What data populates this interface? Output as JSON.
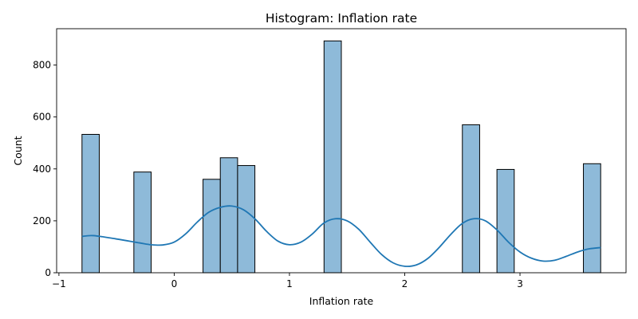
{
  "chart_data": {
    "type": "bar",
    "title": "Histogram: Inflation rate",
    "xlabel": "Inflation rate",
    "ylabel": "Count",
    "xlim": [
      -1.02,
      3.92
    ],
    "ylim": [
      0,
      940
    ],
    "xticks": [
      -1,
      0,
      1,
      2,
      3
    ],
    "yticks": [
      0,
      200,
      400,
      600,
      800
    ],
    "bin_width": 0.15,
    "bins": [
      {
        "x0": -0.8,
        "x1": -0.65,
        "count": 533
      },
      {
        "x0": -0.35,
        "x1": -0.2,
        "count": 388
      },
      {
        "x0": 0.25,
        "x1": 0.4,
        "count": 360
      },
      {
        "x0": 0.4,
        "x1": 0.55,
        "count": 443
      },
      {
        "x0": 0.55,
        "x1": 0.7,
        "count": 413
      },
      {
        "x0": 1.3,
        "x1": 1.45,
        "count": 893
      },
      {
        "x0": 2.5,
        "x1": 2.65,
        "count": 570
      },
      {
        "x0": 2.8,
        "x1": 2.95,
        "count": 398
      },
      {
        "x0": 3.55,
        "x1": 3.7,
        "count": 420
      }
    ],
    "kde": {
      "x": [
        -0.8,
        -0.7,
        -0.5,
        -0.3,
        -0.2,
        -0.1,
        0.0,
        0.1,
        0.2,
        0.3,
        0.4,
        0.5,
        0.6,
        0.7,
        0.8,
        0.9,
        1.0,
        1.1,
        1.2,
        1.3,
        1.4,
        1.5,
        1.6,
        1.7,
        1.8,
        1.9,
        2.0,
        2.1,
        2.2,
        2.3,
        2.4,
        2.5,
        2.6,
        2.7,
        2.8,
        2.9,
        3.0,
        3.1,
        3.2,
        3.3,
        3.4,
        3.5,
        3.6,
        3.7
      ],
      "y": [
        140,
        143,
        130,
        115,
        108,
        107,
        118,
        150,
        195,
        233,
        252,
        257,
        243,
        208,
        160,
        122,
        108,
        118,
        150,
        192,
        208,
        200,
        168,
        118,
        70,
        38,
        25,
        30,
        55,
        98,
        148,
        190,
        208,
        200,
        165,
        118,
        80,
        56,
        45,
        48,
        63,
        80,
        92,
        97
      ]
    },
    "colors": {
      "bar_fill": "#8ebad9",
      "bar_edge": "#000000",
      "kde_line": "#1f77b4"
    },
    "grid": false,
    "legend": "none"
  }
}
